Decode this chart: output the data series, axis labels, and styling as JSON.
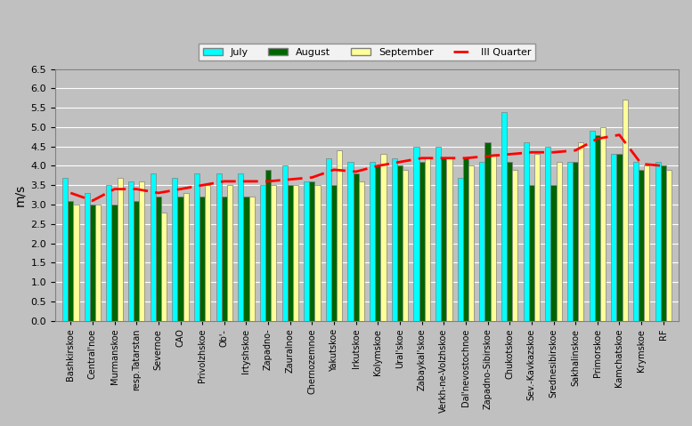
{
  "categories": [
    "Bashkirskoe",
    "Central'noe",
    "Murmanskoe",
    "resp.Tatarstan",
    "Severnoe",
    "CAO",
    "Privolzhskoe",
    "Ob'-",
    "Irtyshskoe",
    "Zapadno-",
    "Zauralnoe",
    "Chernozemnoe",
    "Yakutskoe",
    "Irkutskoe",
    "Kolymskoe",
    "Ural'skoe",
    "Zabaykal'skoe",
    "Verkh-ne-Volzhskoe",
    "Dal'nevostochnoe",
    "Zapadno-Sibirskoe",
    "Chukotskoe",
    "Sev.-Kavkazskoe",
    "Srednesibirskoe",
    "Sakhalinskoe",
    "Primorskoe",
    "Kamchatskoe",
    "Krymskoe",
    "RF"
  ],
  "july": [
    3.7,
    3.3,
    3.5,
    3.6,
    3.8,
    3.7,
    3.8,
    3.8,
    3.8,
    3.5,
    4.0,
    3.6,
    4.2,
    4.1,
    4.1,
    4.2,
    4.5,
    4.5,
    3.7,
    4.1,
    5.4,
    4.6,
    4.5,
    4.1,
    4.9,
    4.3,
    4.1,
    4.1
  ],
  "august": [
    3.1,
    3.0,
    3.0,
    3.1,
    3.2,
    3.2,
    3.2,
    3.2,
    3.2,
    3.9,
    3.5,
    3.6,
    3.5,
    3.8,
    4.0,
    4.0,
    4.1,
    4.2,
    4.2,
    4.6,
    4.1,
    3.5,
    3.5,
    4.1,
    4.8,
    4.3,
    3.9,
    4.0
  ],
  "september": [
    3.0,
    3.0,
    3.7,
    3.6,
    2.8,
    3.3,
    3.5,
    3.5,
    3.2,
    3.5,
    3.5,
    3.5,
    4.4,
    3.6,
    4.3,
    3.9,
    4.2,
    4.2,
    4.0,
    4.3,
    3.9,
    4.3,
    4.1,
    4.6,
    5.0,
    5.7,
    4.0,
    3.9
  ],
  "iii_quarter": [
    3.3,
    3.1,
    3.4,
    3.4,
    3.3,
    3.4,
    3.5,
    3.6,
    3.6,
    3.6,
    3.65,
    3.7,
    3.9,
    3.85,
    4.0,
    4.1,
    4.2,
    4.2,
    4.2,
    4.25,
    4.3,
    4.35,
    4.35,
    4.4,
    4.7,
    4.8,
    4.05,
    4.0
  ],
  "bar_width": 0.25,
  "july_color": "#00FFFF",
  "august_color": "#006400",
  "september_color": "#FFFF99",
  "iii_quarter_color": "red",
  "background_color": "#C0C0C0",
  "ylabel": "m/s",
  "ylim": [
    0,
    6.5
  ],
  "yticks": [
    0,
    0.5,
    1.0,
    1.5,
    2.0,
    2.5,
    3.0,
    3.5,
    4.0,
    4.5,
    5.0,
    5.5,
    6.0,
    6.5
  ],
  "legend_labels": [
    "July",
    "August",
    "September",
    "III Quarter"
  ]
}
